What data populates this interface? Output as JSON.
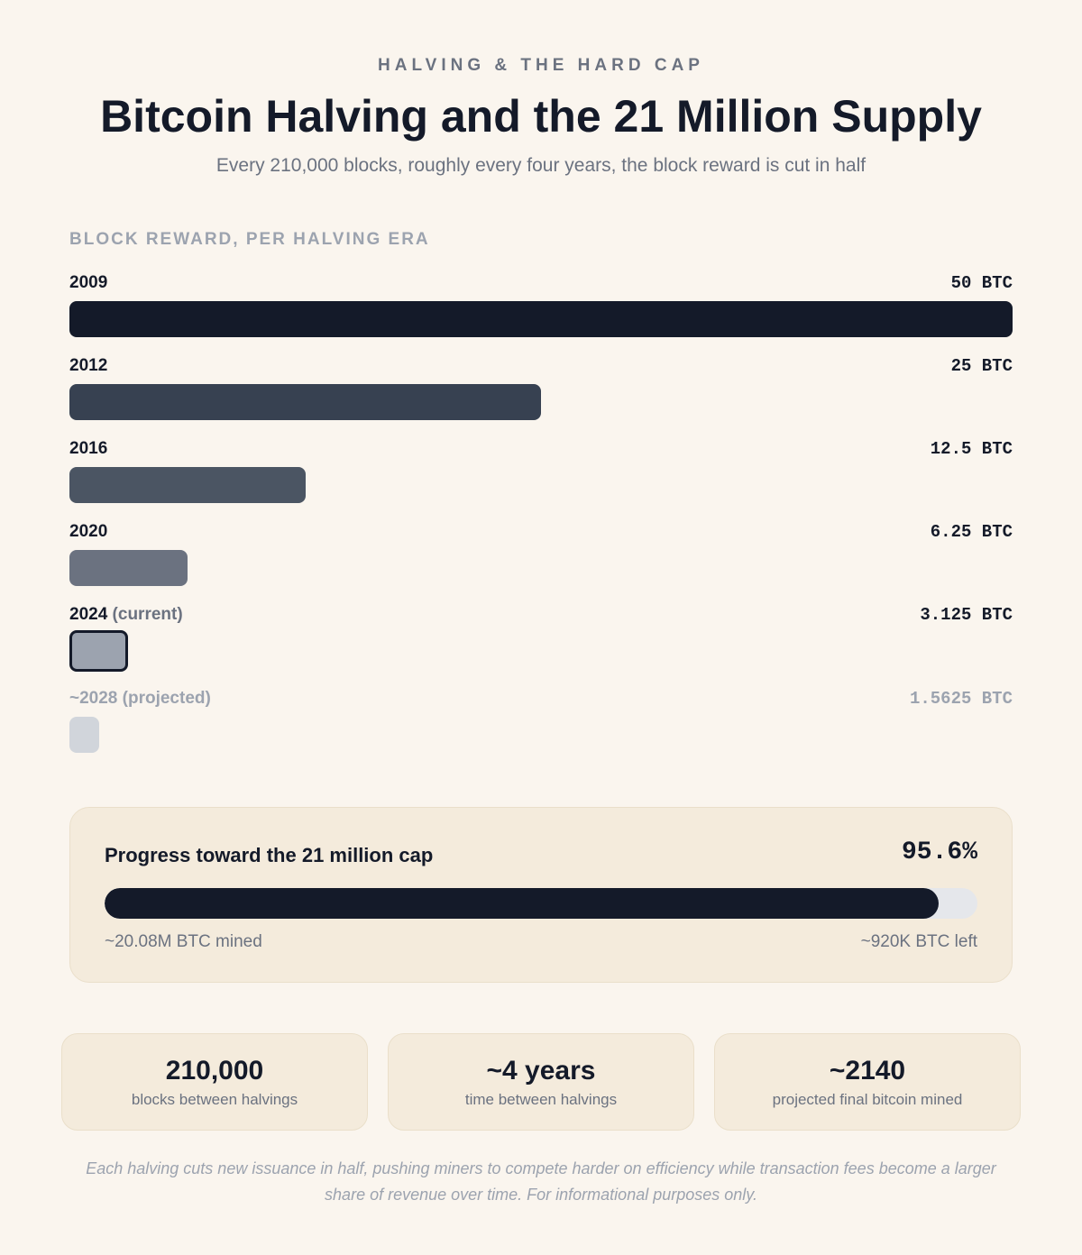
{
  "header": {
    "eyebrow": "HALVING & THE HARD CAP",
    "title": "Bitcoin Halving and the 21 Million Supply",
    "subtitle": "Every 210,000 blocks, roughly every four years, the block reward is cut in half"
  },
  "chart_data": {
    "type": "bar",
    "orientation": "horizontal",
    "title": "BLOCK REWARD, PER HALVING ERA",
    "unit": "BTC",
    "xlim": [
      0,
      50
    ],
    "eras": [
      {
        "year": "2009",
        "suffix": "",
        "value": 50,
        "value_label": "50 BTC",
        "color": "#141a29",
        "status": "past"
      },
      {
        "year": "2012",
        "suffix": "",
        "value": 25,
        "value_label": "25 BTC",
        "color": "#374151",
        "status": "past"
      },
      {
        "year": "2016",
        "suffix": "",
        "value": 12.5,
        "value_label": "12.5 BTC",
        "color": "#4b5563",
        "status": "past"
      },
      {
        "year": "2020",
        "suffix": "",
        "value": 6.25,
        "value_label": "6.25 BTC",
        "color": "#6b7280",
        "status": "past"
      },
      {
        "year": "2024",
        "suffix": " (current)",
        "value": 3.125,
        "value_label": "3.125 BTC",
        "color": "#9ca3af",
        "status": "current"
      },
      {
        "year": "~2028",
        "suffix": " (projected)",
        "value": 1.5625,
        "value_label": "1.5625 BTC",
        "color": "#d1d5db",
        "status": "projected"
      }
    ]
  },
  "progress": {
    "title": "Progress toward the 21 million cap",
    "percent_label": "95.6%",
    "percent": 95.6,
    "mined_label": "~20.08M BTC mined",
    "left_label": "~920K BTC left"
  },
  "stats": [
    {
      "value": "210,000",
      "label": "blocks between halvings"
    },
    {
      "value": "~4 years",
      "label": "time between halvings"
    },
    {
      "value": "~2140",
      "label": "projected final bitcoin mined"
    }
  ],
  "footnote": "Each halving cuts new issuance in half, pushing miners to compete harder on efficiency while transaction fees become a larger share of revenue over time. For informational purposes only."
}
